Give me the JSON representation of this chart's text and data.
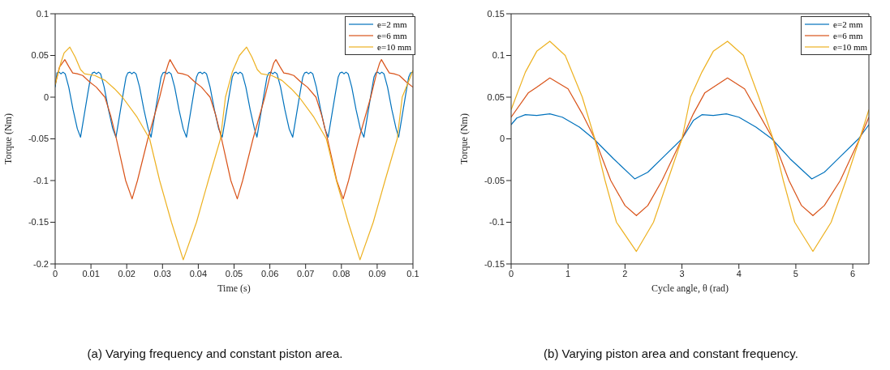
{
  "chart_data": [
    {
      "type": "line",
      "xlabel": "Time (s)",
      "ylabel": "Torque (Nm)",
      "annotations": [
        "(a) Varying frequency and constant piston area."
      ],
      "xlim": [
        0,
        0.1
      ],
      "xticks": [
        0,
        0.01,
        0.02,
        0.03,
        0.04,
        0.05,
        0.06,
        0.07,
        0.08,
        0.09,
        0.1
      ],
      "ylim": [
        -0.2,
        0.1
      ],
      "yticks": [
        -0.2,
        -0.15,
        -0.1,
        -0.05,
        0,
        0.05,
        0.1
      ],
      "legend": "top right",
      "marker": "none",
      "line_style": "solid",
      "series": [
        {
          "name": "e=2 mm",
          "color": "#0072bd",
          "x": [
            0,
            0.0005,
            0.0011,
            0.0016,
            0.0022,
            0.0028,
            0.0038,
            0.005,
            0.0062,
            0.0071,
            0.0081,
            0.0091,
            0.0099,
            0.0104,
            0.011,
            0.0115,
            0.0121,
            0.0127,
            0.0137,
            0.0149,
            0.0161,
            0.017,
            0.018,
            0.019,
            0.0198,
            0.0203,
            0.0209,
            0.0214,
            0.022,
            0.0226,
            0.0236,
            0.0248,
            0.026,
            0.0268,
            0.0278,
            0.0288,
            0.0296,
            0.0301,
            0.0307,
            0.0312,
            0.0318,
            0.0324,
            0.0334,
            0.0346,
            0.0358,
            0.0367,
            0.0377,
            0.0387,
            0.0395,
            0.04,
            0.0406,
            0.0411,
            0.0417,
            0.0423,
            0.0433,
            0.0445,
            0.0457,
            0.0467,
            0.0477,
            0.0487,
            0.0495,
            0.05,
            0.0506,
            0.0511,
            0.0517,
            0.0523,
            0.0533,
            0.0545,
            0.0557,
            0.0564,
            0.0574,
            0.0584,
            0.0592,
            0.0597,
            0.0603,
            0.0608,
            0.0614,
            0.062,
            0.063,
            0.0642,
            0.0654,
            0.0664,
            0.0674,
            0.0684,
            0.0692,
            0.0697,
            0.0703,
            0.0708,
            0.0714,
            0.072,
            0.073,
            0.0742,
            0.0754,
            0.0763,
            0.0773,
            0.0783,
            0.0791,
            0.0796,
            0.0802,
            0.0807,
            0.0813,
            0.0819,
            0.0829,
            0.0841,
            0.0853,
            0.0863,
            0.0873,
            0.0883,
            0.0891,
            0.0896,
            0.0902,
            0.0907,
            0.0913,
            0.0919,
            0.0929,
            0.0941,
            0.0953,
            0.096,
            0.097,
            0.098,
            0.0988,
            0.0993,
            0.1
          ],
          "values": [
            0.012,
            0.029,
            0.03,
            0.028,
            0.03,
            0.028,
            0.012,
            -0.015,
            -0.038,
            -0.048,
            -0.022,
            0.004,
            0.024,
            0.029,
            0.03,
            0.028,
            0.03,
            0.028,
            0.012,
            -0.015,
            -0.038,
            -0.048,
            -0.022,
            0.004,
            0.024,
            0.029,
            0.03,
            0.028,
            0.03,
            0.028,
            0.012,
            -0.015,
            -0.038,
            -0.048,
            -0.022,
            0.004,
            0.024,
            0.029,
            0.03,
            0.028,
            0.03,
            0.028,
            0.012,
            -0.015,
            -0.038,
            -0.048,
            -0.022,
            0.004,
            0.024,
            0.029,
            0.03,
            0.028,
            0.03,
            0.028,
            0.012,
            -0.015,
            -0.038,
            -0.048,
            -0.022,
            0.004,
            0.024,
            0.029,
            0.03,
            0.028,
            0.03,
            0.028,
            0.012,
            -0.015,
            -0.038,
            -0.048,
            -0.022,
            0.004,
            0.024,
            0.029,
            0.03,
            0.028,
            0.03,
            0.028,
            0.012,
            -0.015,
            -0.038,
            -0.048,
            -0.022,
            0.004,
            0.024,
            0.029,
            0.03,
            0.028,
            0.03,
            0.028,
            0.012,
            -0.015,
            -0.038,
            -0.048,
            -0.022,
            0.004,
            0.024,
            0.029,
            0.03,
            0.028,
            0.03,
            0.028,
            0.012,
            -0.015,
            -0.038,
            -0.048,
            -0.022,
            0.004,
            0.024,
            0.029,
            0.03,
            0.028,
            0.03,
            0.028,
            0.012,
            -0.015,
            -0.038,
            -0.048,
            -0.022,
            0.004,
            0.024,
            0.029,
            0.03
          ]
        },
        {
          "name": "e=6 mm",
          "color": "#d95319",
          "x": [
            0,
            0.0012,
            0.0027,
            0.0039,
            0.0049,
            0.0062,
            0.0077,
            0.0097,
            0.0115,
            0.0139,
            0.0155,
            0.017,
            0.0197,
            0.0215,
            0.023,
            0.0259,
            0.0292,
            0.0309,
            0.0317,
            0.0321,
            0.0333,
            0.0343,
            0.0356,
            0.0371,
            0.0391,
            0.0409,
            0.0433,
            0.0449,
            0.0464,
            0.0491,
            0.0509,
            0.0524,
            0.0553,
            0.0586,
            0.0603,
            0.0611,
            0.0617,
            0.0629,
            0.0639,
            0.0652,
            0.0667,
            0.0687,
            0.0705,
            0.0729,
            0.0745,
            0.076,
            0.0787,
            0.0805,
            0.082,
            0.0849,
            0.0882,
            0.0899,
            0.0907,
            0.0912,
            0.0924,
            0.0934,
            0.0947,
            0.0962,
            0.0982,
            0.1
          ],
          "values": [
            0.015,
            0.036,
            0.045,
            0.036,
            0.029,
            0.028,
            0.026,
            0.018,
            0.012,
            0,
            -0.022,
            -0.048,
            -0.1,
            -0.122,
            -0.1,
            -0.05,
            0,
            0.03,
            0.041,
            0.045,
            0.036,
            0.029,
            0.028,
            0.026,
            0.018,
            0.012,
            0,
            -0.022,
            -0.048,
            -0.1,
            -0.122,
            -0.1,
            -0.05,
            0,
            0.03,
            0.041,
            0.045,
            0.036,
            0.029,
            0.028,
            0.026,
            0.018,
            0.012,
            0,
            -0.022,
            -0.048,
            -0.1,
            -0.122,
            -0.1,
            -0.05,
            0,
            0.03,
            0.041,
            0.045,
            0.036,
            0.029,
            0.028,
            0.026,
            0.018,
            0.012
          ]
        },
        {
          "name": "e=10 mm",
          "color": "#edb120",
          "x": [
            0,
            0.0015,
            0.0025,
            0.0041,
            0.0056,
            0.0071,
            0.0082,
            0.0111,
            0.014,
            0.0166,
            0.0188,
            0.0229,
            0.0264,
            0.0292,
            0.0325,
            0.0358,
            0.0395,
            0.0428,
            0.0462,
            0.0476,
            0.0495,
            0.0515,
            0.0535,
            0.055,
            0.0565,
            0.0576,
            0.0605,
            0.0634,
            0.066,
            0.0682,
            0.0723,
            0.0758,
            0.0786,
            0.0819,
            0.0852,
            0.0889,
            0.0922,
            0.0956,
            0.097,
            0.1
          ],
          "values": [
            0.015,
            0.04,
            0.053,
            0.06,
            0.048,
            0.033,
            0.028,
            0.026,
            0.02,
            0.01,
            0,
            -0.024,
            -0.05,
            -0.1,
            -0.15,
            -0.195,
            -0.15,
            -0.1,
            -0.05,
            0,
            0.03,
            0.05,
            0.06,
            0.048,
            0.033,
            0.028,
            0.026,
            0.02,
            0.01,
            0,
            -0.024,
            -0.05,
            -0.1,
            -0.15,
            -0.195,
            -0.15,
            -0.1,
            -0.05,
            0,
            0.032
          ]
        }
      ]
    },
    {
      "type": "line",
      "xlabel": "Cycle angle, θ (rad)",
      "ylabel": "Torque (Nm)",
      "annotations": [
        "(b) Varying piston area and constant frequency."
      ],
      "xlim": [
        0,
        6.2832
      ],
      "xticks": [
        0,
        1,
        2,
        3,
        4,
        5,
        6
      ],
      "ylim": [
        -0.15,
        0.15
      ],
      "yticks": [
        -0.15,
        -0.1,
        -0.05,
        0,
        0.05,
        0.1,
        0.15
      ],
      "legend": "top right",
      "marker": "none",
      "line_style": "solid",
      "series": [
        {
          "name": "e=2 mm",
          "color": "#0072bd",
          "x": [
            0,
            0.1,
            0.25,
            0.45,
            0.68,
            0.9,
            1.2,
            1.45,
            1.8,
            2.17,
            2.4,
            2.7,
            3,
            3.2,
            3.35,
            3.55,
            3.78,
            4,
            4.3,
            4.58,
            4.9,
            5.28,
            5.5,
            5.8,
            6.1,
            6.2832
          ],
          "values": [
            0.017,
            0.025,
            0.029,
            0.028,
            0.03,
            0.026,
            0.014,
            0,
            -0.024,
            -0.048,
            -0.04,
            -0.02,
            0,
            0.022,
            0.029,
            0.028,
            0.03,
            0.026,
            0.014,
            0,
            -0.024,
            -0.048,
            -0.04,
            -0.02,
            0,
            0.017
          ]
        },
        {
          "name": "e=6 mm",
          "color": "#d95319",
          "x": [
            0,
            0.3,
            0.45,
            0.68,
            1,
            1.25,
            1.47,
            1.75,
            2,
            2.2,
            2.4,
            2.65,
            3,
            3.2,
            3.4,
            3.55,
            3.8,
            4.1,
            4.35,
            4.6,
            4.88,
            5.1,
            5.3,
            5.5,
            5.78,
            6.12,
            6.2832
          ],
          "values": [
            0.026,
            0.055,
            0.062,
            0.073,
            0.06,
            0.03,
            0,
            -0.05,
            -0.08,
            -0.092,
            -0.08,
            -0.05,
            0,
            0.03,
            0.055,
            0.062,
            0.073,
            0.06,
            0.03,
            0,
            -0.05,
            -0.08,
            -0.092,
            -0.08,
            -0.05,
            0,
            0.026
          ]
        },
        {
          "name": "e=10 mm",
          "color": "#edb120",
          "x": [
            0,
            0.25,
            0.45,
            0.68,
            0.95,
            1.25,
            1.47,
            1.65,
            1.85,
            2.2,
            2.5,
            2.75,
            3,
            3.15,
            3.35,
            3.55,
            3.8,
            4.08,
            4.35,
            4.6,
            4.78,
            4.98,
            5.3,
            5.62,
            5.88,
            6.12,
            6.2832
          ],
          "values": [
            0.035,
            0.08,
            0.105,
            0.117,
            0.1,
            0.05,
            0,
            -0.05,
            -0.1,
            -0.135,
            -0.1,
            -0.05,
            0,
            0.05,
            0.08,
            0.105,
            0.117,
            0.1,
            0.05,
            0,
            -0.05,
            -0.1,
            -0.135,
            -0.1,
            -0.05,
            0,
            0.035
          ]
        }
      ]
    }
  ]
}
